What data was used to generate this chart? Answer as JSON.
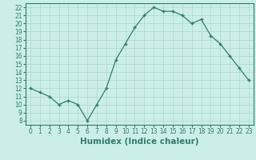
{
  "x": [
    0,
    1,
    2,
    3,
    4,
    5,
    6,
    7,
    8,
    9,
    10,
    11,
    12,
    13,
    14,
    15,
    16,
    17,
    18,
    19,
    20,
    21,
    22,
    23
  ],
  "y": [
    12.0,
    11.5,
    11.0,
    10.0,
    10.5,
    10.0,
    8.0,
    10.0,
    12.0,
    15.5,
    17.5,
    19.5,
    21.0,
    22.0,
    21.5,
    21.5,
    21.0,
    20.0,
    20.5,
    18.5,
    17.5,
    16.0,
    14.5,
    13.0
  ],
  "line_color": "#2e7d6e",
  "marker": "+",
  "marker_size": 3,
  "marker_edge_width": 1.0,
  "background_color": "#cceee8",
  "grid_color": "#aad8d0",
  "xlabel": "Humidex (Indice chaleur)",
  "xlim": [
    -0.5,
    23.5
  ],
  "ylim": [
    7.5,
    22.5
  ],
  "yticks": [
    8,
    9,
    10,
    11,
    12,
    13,
    14,
    15,
    16,
    17,
    18,
    19,
    20,
    21,
    22
  ],
  "xticks": [
    0,
    1,
    2,
    3,
    4,
    5,
    6,
    7,
    8,
    9,
    10,
    11,
    12,
    13,
    14,
    15,
    16,
    17,
    18,
    19,
    20,
    21,
    22,
    23
  ],
  "tick_fontsize": 5.5,
  "xlabel_fontsize": 7.5,
  "line_width": 0.9
}
